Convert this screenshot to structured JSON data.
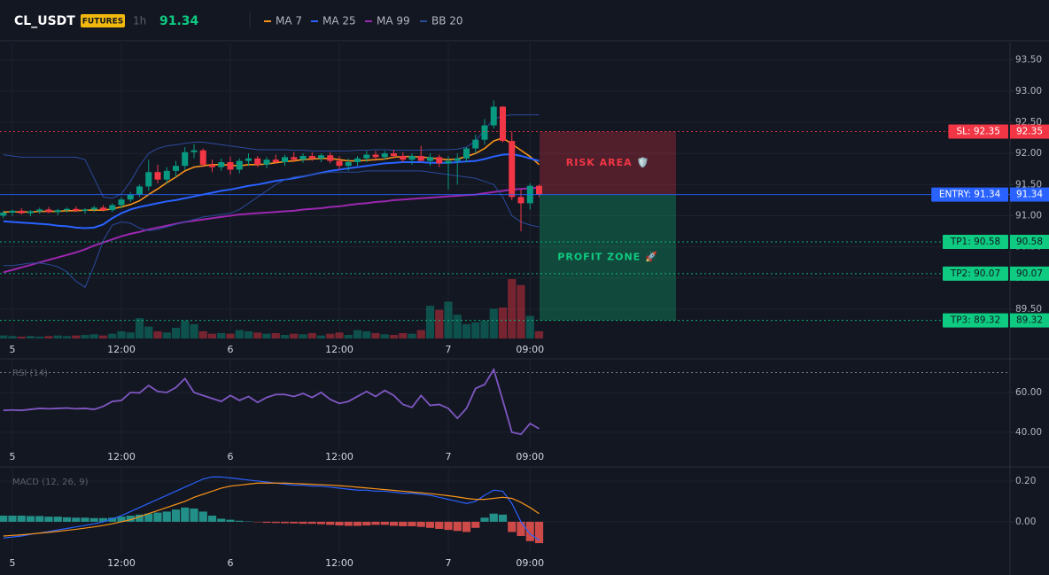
{
  "header": {
    "symbol": "CL_USDT",
    "badge": "FUTURES",
    "interval": "1h",
    "price": 91.34
  },
  "chart_data": [
    {
      "type": "candlestick",
      "categories": [
        null,
        "5",
        null,
        null,
        null,
        null,
        null,
        null,
        null,
        null,
        null,
        null,
        null,
        "12:00",
        null,
        null,
        null,
        null,
        null,
        null,
        null,
        null,
        null,
        null,
        null,
        "6",
        null,
        null,
        null,
        null,
        null,
        null,
        null,
        null,
        null,
        null,
        null,
        "12:00",
        null,
        null,
        null,
        null,
        null,
        null,
        null,
        null,
        null,
        null,
        null,
        "7",
        null,
        null,
        null,
        null,
        null,
        null,
        null,
        null,
        "09:00",
        null
      ],
      "open": [
        91.0,
        91.05,
        91.08,
        91.04,
        91.07,
        91.1,
        91.06,
        91.09,
        91.11,
        91.08,
        91.1,
        91.13,
        91.09,
        91.17,
        91.26,
        91.34,
        91.47,
        91.7,
        91.58,
        91.72,
        91.8,
        92.02,
        92.05,
        91.82,
        91.78,
        91.86,
        91.74,
        91.88,
        91.92,
        91.82,
        91.9,
        91.86,
        91.94,
        91.9,
        91.96,
        91.92,
        91.97,
        91.88,
        91.8,
        91.86,
        91.92,
        91.98,
        91.94,
        92.0,
        91.96,
        91.9,
        91.96,
        91.88,
        91.94,
        91.84,
        91.88,
        91.92,
        92.08,
        92.22,
        92.45,
        92.75,
        92.2,
        91.3,
        91.2,
        91.48
      ],
      "high": [
        91.08,
        91.1,
        91.12,
        91.09,
        91.13,
        91.14,
        91.11,
        91.13,
        91.15,
        91.12,
        91.16,
        91.17,
        91.2,
        91.3,
        91.38,
        91.5,
        91.9,
        91.82,
        91.78,
        91.88,
        92.1,
        92.15,
        92.08,
        91.9,
        91.92,
        91.95,
        91.92,
        92.0,
        91.96,
        91.94,
        91.98,
        91.98,
        92.02,
        92.0,
        92.02,
        92.0,
        92.02,
        91.96,
        91.92,
        91.96,
        92.04,
        92.04,
        92.04,
        92.06,
        92.02,
        92.0,
        92.12,
        92.0,
        91.98,
        91.96,
        92.0,
        92.1,
        92.3,
        92.55,
        92.85,
        92.76,
        92.35,
        91.42,
        91.52,
        91.5
      ],
      "low": [
        90.96,
        91.0,
        91.02,
        90.99,
        91.03,
        91.04,
        91.01,
        91.05,
        91.06,
        91.03,
        91.06,
        91.07,
        91.06,
        91.12,
        91.22,
        91.3,
        91.4,
        91.52,
        91.52,
        91.62,
        91.74,
        91.92,
        91.78,
        91.7,
        91.72,
        91.66,
        91.68,
        91.8,
        91.78,
        91.76,
        91.84,
        91.8,
        91.86,
        91.85,
        91.88,
        91.86,
        91.84,
        91.74,
        91.72,
        91.8,
        91.86,
        91.88,
        91.9,
        91.92,
        91.86,
        91.82,
        91.88,
        91.8,
        91.78,
        91.42,
        91.5,
        91.86,
        92.0,
        92.14,
        92.4,
        92.18,
        91.25,
        90.75,
        91.1,
        91.3
      ],
      "close": [
        91.05,
        91.08,
        91.04,
        91.07,
        91.1,
        91.06,
        91.09,
        91.11,
        91.08,
        91.1,
        91.13,
        91.09,
        91.17,
        91.26,
        91.34,
        91.47,
        91.7,
        91.58,
        91.72,
        91.8,
        92.02,
        92.05,
        91.82,
        91.78,
        91.86,
        91.74,
        91.88,
        91.92,
        91.82,
        91.9,
        91.86,
        91.94,
        91.9,
        91.96,
        91.92,
        91.97,
        91.88,
        91.8,
        91.86,
        91.92,
        91.98,
        91.94,
        92.0,
        91.96,
        91.9,
        91.96,
        91.88,
        91.94,
        91.84,
        91.88,
        91.92,
        92.08,
        92.22,
        92.45,
        92.75,
        92.2,
        91.3,
        91.2,
        91.48,
        91.34
      ],
      "volume": [
        5,
        4,
        3,
        4,
        3,
        4,
        5,
        4,
        5,
        6,
        7,
        5,
        8,
        12,
        10,
        34,
        20,
        12,
        10,
        18,
        30,
        24,
        12,
        8,
        9,
        8,
        14,
        12,
        10,
        8,
        9,
        6,
        8,
        7,
        9,
        5,
        8,
        10,
        6,
        14,
        12,
        9,
        7,
        6,
        9,
        8,
        14,
        55,
        48,
        62,
        40,
        24,
        27,
        30,
        50,
        52,
        100,
        90,
        38,
        12
      ],
      "up_color": "#089981",
      "down_color": "#f23645",
      "series": [
        {
          "name": "MA 7",
          "color": "#f7931a",
          "values": [
            91.06,
            91.06,
            91.06,
            91.06,
            91.07,
            91.07,
            91.07,
            91.08,
            91.08,
            91.09,
            91.09,
            91.09,
            91.11,
            91.14,
            91.18,
            91.24,
            91.34,
            91.43,
            91.53,
            91.62,
            91.72,
            91.78,
            91.8,
            91.82,
            91.82,
            91.81,
            91.8,
            91.82,
            91.82,
            91.83,
            91.85,
            91.87,
            91.88,
            91.9,
            91.91,
            91.92,
            91.92,
            91.9,
            91.88,
            91.88,
            91.89,
            91.9,
            91.91,
            91.94,
            91.95,
            91.95,
            91.94,
            91.93,
            91.91,
            91.9,
            91.91,
            91.95,
            92.0,
            92.08,
            92.2,
            92.25,
            92.15,
            92.05,
            91.95,
            91.82
          ]
        },
        {
          "name": "MA 25",
          "color": "#2962ff",
          "values": [
            90.91,
            90.9,
            90.89,
            90.88,
            90.87,
            90.86,
            90.84,
            90.83,
            90.81,
            90.8,
            90.81,
            90.86,
            90.96,
            91.04,
            91.1,
            91.14,
            91.17,
            91.2,
            91.23,
            91.25,
            91.28,
            91.31,
            91.34,
            91.37,
            91.4,
            91.42,
            91.45,
            91.48,
            91.5,
            91.53,
            91.56,
            91.58,
            91.6,
            91.63,
            91.66,
            91.69,
            91.72,
            91.74,
            91.76,
            91.78,
            91.8,
            91.82,
            91.84,
            91.85,
            91.86,
            91.86,
            91.86,
            91.85,
            91.85,
            91.85,
            91.86,
            91.87,
            91.88,
            91.91,
            91.95,
            91.98,
            91.99,
            91.96,
            91.92,
            91.88
          ]
        },
        {
          "name": "MA 99",
          "color": "#9c27b0",
          "values": [
            90.09,
            90.13,
            90.17,
            90.21,
            90.25,
            90.29,
            90.33,
            90.37,
            90.41,
            90.46,
            90.52,
            90.57,
            90.62,
            90.67,
            90.71,
            90.74,
            90.78,
            90.81,
            90.84,
            90.87,
            90.9,
            90.92,
            90.94,
            90.96,
            90.98,
            91.0,
            91.02,
            91.03,
            91.04,
            91.05,
            91.06,
            91.07,
            91.08,
            91.1,
            91.11,
            91.12,
            91.14,
            91.15,
            91.17,
            91.19,
            91.2,
            91.22,
            91.23,
            91.25,
            91.26,
            91.27,
            91.28,
            91.29,
            91.3,
            91.31,
            91.32,
            91.33,
            91.34,
            91.36,
            91.38,
            91.4,
            91.42,
            91.43,
            91.44,
            91.45
          ]
        },
        {
          "name": "BB 20",
          "color": "#2a4a9a",
          "upper": [
            91.98,
            91.96,
            91.94,
            91.94,
            91.94,
            91.94,
            91.94,
            91.94,
            91.94,
            91.9,
            91.6,
            91.3,
            91.28,
            91.35,
            91.55,
            91.8,
            92.0,
            92.08,
            92.12,
            92.14,
            92.16,
            92.18,
            92.18,
            92.16,
            92.14,
            92.12,
            92.1,
            92.08,
            92.06,
            92.06,
            92.06,
            92.06,
            92.05,
            92.05,
            92.04,
            92.04,
            92.04,
            92.04,
            92.04,
            92.05,
            92.05,
            92.06,
            92.06,
            92.05,
            92.05,
            92.05,
            92.05,
            92.06,
            92.06,
            92.06,
            92.07,
            92.1,
            92.2,
            92.38,
            92.55,
            92.6,
            92.62,
            92.62,
            92.62,
            92.62
          ],
          "lower": [
            90.2,
            90.2,
            90.22,
            90.24,
            90.24,
            90.22,
            90.18,
            90.1,
            89.95,
            89.85,
            90.2,
            90.6,
            90.85,
            90.9,
            90.88,
            90.8,
            90.76,
            90.78,
            90.82,
            90.86,
            90.9,
            90.94,
            90.98,
            91.0,
            91.02,
            91.04,
            91.1,
            91.2,
            91.3,
            91.4,
            91.5,
            91.58,
            91.62,
            91.64,
            91.66,
            91.68,
            91.7,
            91.7,
            91.7,
            91.7,
            91.72,
            91.72,
            91.72,
            91.72,
            91.72,
            91.72,
            91.72,
            91.7,
            91.68,
            91.66,
            91.64,
            91.62,
            91.6,
            91.55,
            91.5,
            91.3,
            91.0,
            90.9,
            90.85,
            90.82
          ]
        }
      ],
      "ylim": [
        89.03,
        93.78
      ],
      "yticks": [
        {
          "value": 89.5,
          "label": "89.50"
        },
        {
          "value": 90.0,
          "label": "90.00"
        },
        {
          "value": 90.5,
          "label": "90.50"
        },
        {
          "value": 91.0,
          "label": "91.00"
        },
        {
          "value": 91.5,
          "label": "91.50"
        },
        {
          "value": 92.0,
          "label": "92.00"
        },
        {
          "value": 92.5,
          "label": "92.50"
        },
        {
          "value": 93.0,
          "label": "93.00"
        },
        {
          "value": 93.5,
          "label": "93.50"
        }
      ],
      "grid": true,
      "orders": [
        {
          "label": "SL: 92.35",
          "price": 92.35,
          "color": "#f23645",
          "text_color": "#ffffff",
          "line_style": "dotted"
        },
        {
          "label": "ENTRY: 91.34",
          "price": 91.34,
          "color": "#2962ff",
          "text_color": "#ffffff",
          "line_style": "solid"
        },
        {
          "label": "TP1: 90.58",
          "price": 90.58,
          "color": "#0ecb81",
          "text_color": "#131722",
          "line_style": "dotted"
        },
        {
          "label": "TP2: 90.07",
          "price": 90.07,
          "color": "#0ecb81",
          "text_color": "#131722",
          "line_style": "dotted"
        },
        {
          "label": "TP3: 89.32",
          "price": 89.32,
          "color": "#0ecb81",
          "text_color": "#131722",
          "line_style": "dotted"
        }
      ],
      "zones": [
        {
          "label": "RISK AREA 🛡️",
          "color": "#f23645"
        },
        {
          "label": "PROFIT ZONE 🚀",
          "color": "#0ecb81"
        }
      ]
    },
    {
      "type": "line",
      "title": "RSI (14)",
      "categories": [
        null,
        "5",
        null,
        null,
        null,
        null,
        null,
        null,
        null,
        null,
        null,
        null,
        null,
        "12:00",
        null,
        null,
        null,
        null,
        null,
        null,
        null,
        null,
        null,
        null,
        null,
        "6",
        null,
        null,
        null,
        null,
        null,
        null,
        null,
        null,
        null,
        null,
        null,
        "12:00",
        null,
        null,
        null,
        null,
        null,
        null,
        null,
        null,
        null,
        null,
        null,
        "7",
        null,
        null,
        null,
        null,
        null,
        null,
        null,
        null,
        "09:00",
        null
      ],
      "values": [
        51,
        51.2,
        51,
        51.5,
        52,
        51.8,
        52,
        52.2,
        51.8,
        52,
        51.5,
        53,
        55.5,
        56,
        60,
        59.8,
        63.5,
        60.5,
        60,
        62.5,
        67,
        60,
        58.5,
        57,
        55.5,
        58.5,
        56,
        58,
        55,
        57.5,
        59,
        59,
        58,
        59.5,
        57.5,
        60,
        56.5,
        54.5,
        55.5,
        58,
        60.5,
        58,
        61,
        58.5,
        54,
        52.5,
        58.5,
        53.5,
        54,
        52,
        47,
        52,
        62,
        64,
        71.5,
        56,
        40,
        39,
        44.4,
        41.8
      ],
      "color": "#7e57c2",
      "hlines": [
        70
      ],
      "ylim": [
        32.4,
        76.9
      ],
      "yticks": [
        {
          "value": 40,
          "label": "40.00"
        },
        {
          "value": 60,
          "label": "60.00"
        }
      ],
      "grid": true
    },
    {
      "type": "macd",
      "title": "MACD (12, 26, 9)",
      "categories": [
        null,
        "5",
        null,
        null,
        null,
        null,
        null,
        null,
        null,
        null,
        null,
        null,
        null,
        "12:00",
        null,
        null,
        null,
        null,
        null,
        null,
        null,
        null,
        null,
        null,
        null,
        "6",
        null,
        null,
        null,
        null,
        null,
        null,
        null,
        null,
        null,
        null,
        null,
        "12:00",
        null,
        null,
        null,
        null,
        null,
        null,
        null,
        null,
        null,
        null,
        null,
        "7",
        null,
        null,
        null,
        null,
        null,
        null,
        null,
        null,
        "09:00",
        null
      ],
      "macd": [
        -0.08,
        -0.075,
        -0.07,
        -0.062,
        -0.055,
        -0.048,
        -0.04,
        -0.033,
        -0.025,
        -0.018,
        -0.01,
        0.0,
        0.015,
        0.03,
        0.05,
        0.07,
        0.09,
        0.11,
        0.13,
        0.15,
        0.17,
        0.19,
        0.21,
        0.22,
        0.22,
        0.215,
        0.21,
        0.205,
        0.2,
        0.195,
        0.19,
        0.185,
        0.18,
        0.18,
        0.175,
        0.175,
        0.17,
        0.165,
        0.16,
        0.155,
        0.155,
        0.15,
        0.15,
        0.145,
        0.14,
        0.14,
        0.135,
        0.13,
        0.12,
        0.11,
        0.1,
        0.09,
        0.1,
        0.13,
        0.155,
        0.15,
        0.09,
        0.0,
        -0.06,
        -0.09
      ],
      "signal": [
        -0.07,
        -0.067,
        -0.064,
        -0.06,
        -0.056,
        -0.052,
        -0.047,
        -0.042,
        -0.037,
        -0.031,
        -0.025,
        -0.018,
        -0.01,
        0.0,
        0.01,
        0.025,
        0.04,
        0.055,
        0.07,
        0.085,
        0.1,
        0.12,
        0.135,
        0.15,
        0.165,
        0.175,
        0.18,
        0.185,
        0.19,
        0.19,
        0.19,
        0.19,
        0.188,
        0.186,
        0.184,
        0.182,
        0.18,
        0.177,
        0.174,
        0.17,
        0.166,
        0.162,
        0.158,
        0.154,
        0.15,
        0.146,
        0.142,
        0.138,
        0.133,
        0.128,
        0.122,
        0.115,
        0.11,
        0.11,
        0.115,
        0.12,
        0.115,
        0.095,
        0.07,
        0.04
      ],
      "histogram": [
        0.03,
        0.03,
        0.03,
        0.028,
        0.028,
        0.025,
        0.025,
        0.022,
        0.02,
        0.02,
        0.018,
        0.018,
        0.02,
        0.025,
        0.03,
        0.035,
        0.04,
        0.045,
        0.05,
        0.06,
        0.07,
        0.065,
        0.05,
        0.03,
        0.015,
        0.01,
        0.005,
        0.002,
        -0.002,
        -0.005,
        -0.006,
        -0.007,
        -0.008,
        -0.01,
        -0.01,
        -0.012,
        -0.015,
        -0.018,
        -0.02,
        -0.02,
        -0.018,
        -0.015,
        -0.015,
        -0.02,
        -0.022,
        -0.022,
        -0.025,
        -0.03,
        -0.035,
        -0.04,
        -0.045,
        -0.05,
        -0.03,
        0.02,
        0.04,
        0.035,
        -0.05,
        -0.07,
        -0.095,
        -0.105
      ],
      "macd_color": "#2962ff",
      "signal_color": "#f7931a",
      "up_color": "#26a69a",
      "down_color": "#ef5350",
      "ylim": [
        -0.157,
        0.265
      ],
      "yticks": [
        {
          "value": 0,
          "label": "0.00"
        },
        {
          "value": 0.2,
          "label": "0.20"
        }
      ],
      "grid": true
    }
  ]
}
